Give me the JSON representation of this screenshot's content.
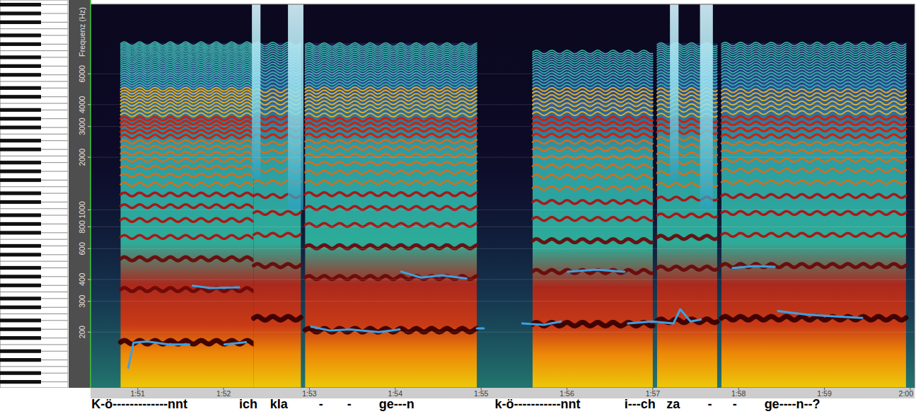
{
  "chart_data": {
    "type": "spectrogram",
    "y_label": "Frequenz (Hz)",
    "log": "y",
    "grid": true,
    "xlim": [
      110.45,
      120.05
    ],
    "xticks": [
      {
        "value": 111,
        "label": "1:51"
      },
      {
        "value": 112,
        "label": "1:52"
      },
      {
        "value": 113,
        "label": "1:53"
      },
      {
        "value": 114,
        "label": "1:54"
      },
      {
        "value": 115,
        "label": "1:55"
      },
      {
        "value": 116,
        "label": "1:56"
      },
      {
        "value": 117,
        "label": "1:57"
      },
      {
        "value": 118,
        "label": "1:58"
      },
      {
        "value": 119,
        "label": "1:59"
      },
      {
        "value": 120,
        "label": "2:00"
      }
    ],
    "ylim": [
      96,
      15000
    ],
    "yticks": [
      200,
      300,
      400,
      600,
      800,
      1000,
      2000,
      3000,
      4000,
      6000
    ],
    "notes": [
      {
        "start": 110.8,
        "end": 112.35,
        "f0": 175,
        "top": 9000
      },
      {
        "start": 112.35,
        "end": 112.9,
        "f0": 240,
        "top": 9000
      },
      {
        "start": 112.95,
        "end": 114.95,
        "f0": 205,
        "top": 9000
      },
      {
        "start": 115.6,
        "end": 117.0,
        "f0": 222,
        "top": 8000
      },
      {
        "start": 117.05,
        "end": 117.75,
        "f0": 232,
        "top": 9000
      },
      {
        "start": 117.8,
        "end": 119.95,
        "f0": 240,
        "top": 9000
      }
    ],
    "bursts": [
      {
        "start": 112.33,
        "end": 112.43,
        "low": 1500
      },
      {
        "start": 112.75,
        "end": 112.93,
        "low": 1000
      },
      {
        "start": 117.2,
        "end": 117.3,
        "low": 1500
      },
      {
        "start": 117.55,
        "end": 117.7,
        "low": 1000
      }
    ],
    "pitch_track": {
      "color": "#3fa0e0",
      "line_style": "solid",
      "x": [
        110.89,
        110.95,
        111.11,
        111.36,
        111.6,
        null,
        111.64,
        111.85,
        112.18,
        null,
        112.01,
        112.26,
        null,
        113.02,
        113.24,
        113.48,
        113.81,
        114.05,
        null,
        114.07,
        114.3,
        114.54,
        114.83,
        null,
        114.95,
        115.03,
        null,
        115.48,
        115.73,
        115.93,
        null,
        116.01,
        116.34,
        116.67,
        null,
        116.71,
        116.99,
        117.24,
        117.32,
        117.44,
        117.56,
        null,
        117.93,
        118.18,
        118.42,
        null,
        118.46,
        118.79,
        119.11,
        119.44
      ],
      "values": [
        125,
        174,
        177,
        170,
        170,
        null,
        368,
        357,
        361,
        null,
        170,
        175,
        null,
        215,
        204,
        207,
        200,
        207,
        null,
        443,
        410,
        422,
        405,
        null,
        210,
        210,
        null,
        224,
        220,
        230,
        null,
        443,
        455,
        443,
        null,
        224,
        230,
        224,
        270,
        230,
        236,
        null,
        465,
        477,
        473,
        null,
        264,
        252,
        246,
        241
      ]
    },
    "lyrics": [
      {
        "text": "K-ö-------------nnt",
        "time": 110.46
      },
      {
        "text": "ich",
        "time": 112.18
      },
      {
        "text": "kla",
        "time": 112.54
      },
      {
        "text": "-",
        "time": 113.11
      },
      {
        "text": "-",
        "time": 113.44
      },
      {
        "text": "ge---n",
        "time": 113.81
      },
      {
        "text": "k-ö-----------nnt",
        "time": 115.16
      },
      {
        "text": "i---ch",
        "time": 116.67
      },
      {
        "text": "za",
        "time": 117.16
      },
      {
        "text": "-",
        "time": 117.64
      },
      {
        "text": "-",
        "time": 117.93
      },
      {
        "text": "ge----n--?",
        "time": 118.3
      }
    ]
  }
}
